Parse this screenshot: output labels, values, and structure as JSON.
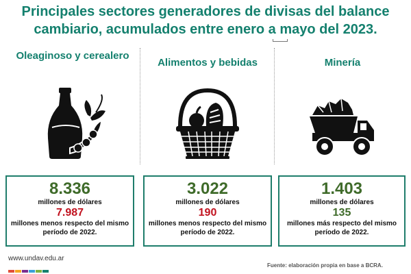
{
  "title": "Principales sectores generadores de divisas del balance cambiario, acumulados entre enero a mayo del 2023.",
  "sectors": [
    {
      "name": "Oleaginoso y cerealero",
      "icon": "oil-bottle-soybean-icon",
      "value": "8.336",
      "unit": "millones de dólares",
      "delta": "7.987",
      "delta_color": "#c1121f",
      "description": "millones menos respecto del mismo período de 2022."
    },
    {
      "name": "Alimentos y bebidas",
      "icon": "food-basket-icon",
      "value": "3.022",
      "unit": "millones de dólares",
      "delta": "190",
      "delta_color": "#c1121f",
      "description": "millones menos respecto del mismo período de 2022."
    },
    {
      "name": "Minería",
      "icon": "mining-truck-icon",
      "value": "1.403",
      "unit": "millones de dólares",
      "delta": "135",
      "delta_color": "#3f6b2a",
      "description": "millones más respecto del mismo período de 2022."
    }
  ],
  "footer": {
    "website": "www.undav.edu.ar",
    "source": "Fuente: elaboración propia en base a BCRA.",
    "color_bar": [
      "#e04e39",
      "#f5a623",
      "#7b2d8e",
      "#3aa0d8",
      "#7cb342",
      "#14806e"
    ]
  },
  "colors": {
    "title": "#14806e",
    "card_border": "#1e7d6b",
    "value": "#3f6b2a"
  }
}
